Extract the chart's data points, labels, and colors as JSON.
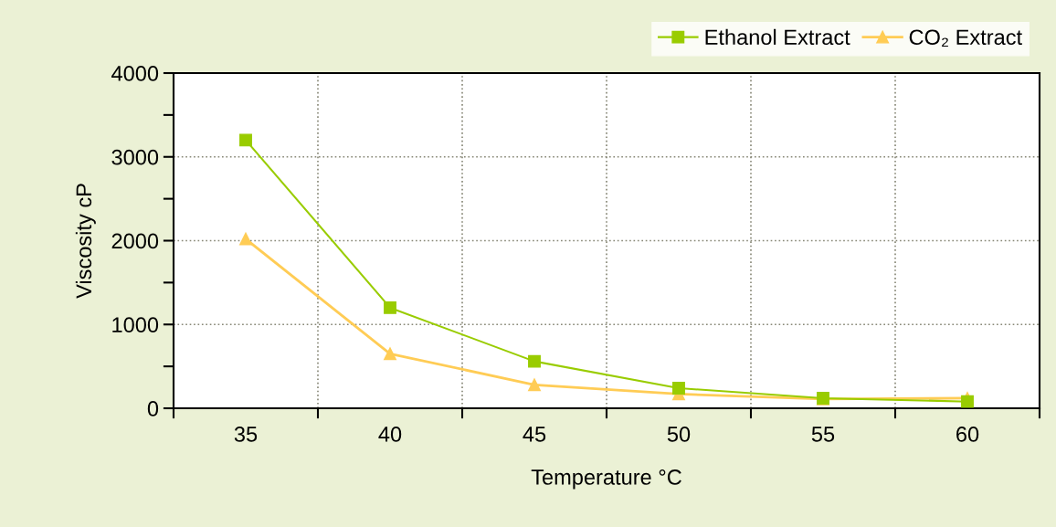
{
  "chart_data": {
    "type": "line",
    "xlabel": "Temperature °C",
    "ylabel": "Viscosity cP",
    "categories": [
      "35",
      "40",
      "45",
      "50",
      "55",
      "60"
    ],
    "series": [
      {
        "name": "Ethanol Extract",
        "color": "#99cc00",
        "marker": "square",
        "values": [
          3200,
          1200,
          560,
          240,
          120,
          80
        ]
      },
      {
        "name": "CO₂ Extract",
        "color": "#ffcc55",
        "marker": "triangle",
        "values": [
          2020,
          650,
          280,
          170,
          110,
          120
        ]
      }
    ],
    "ylim": [
      0,
      4000
    ],
    "yticks": [
      0,
      {
        "value": 500,
        "label": null
      },
      1000,
      {
        "value": 1500,
        "label": null
      },
      2000,
      {
        "value": 2500,
        "label": null
      },
      3000,
      {
        "value": 3500,
        "label": null
      },
      4000
    ],
    "grid": true,
    "legend": "top right",
    "line_style": "solid"
  }
}
